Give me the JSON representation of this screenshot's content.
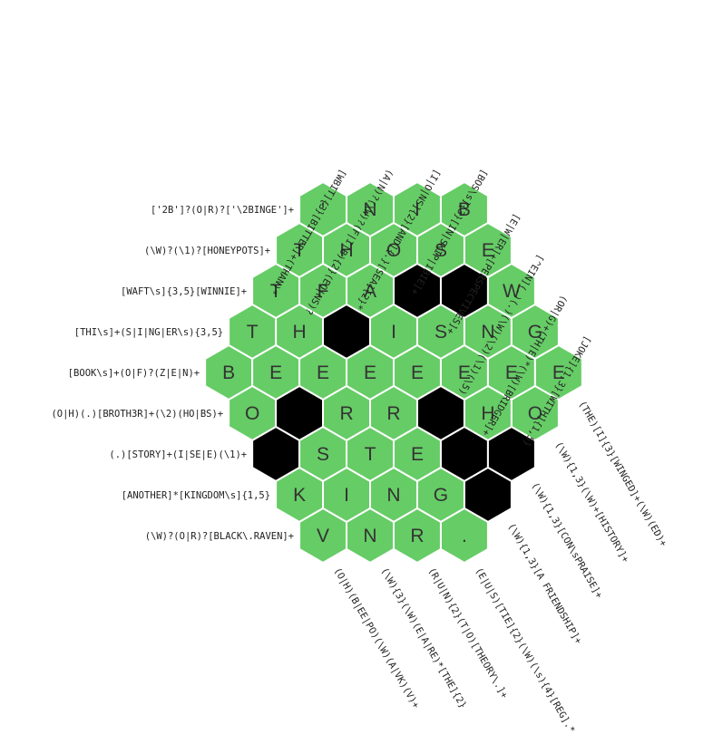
{
  "colors": {
    "cell": "#66cc66",
    "blocked": "#000000",
    "stroke": "#ffffff",
    "letter": "#333333"
  },
  "grid": {
    "rows": [
      [
        "'",
        "N",
        "I",
        "B"
      ],
      [
        "T",
        "H",
        "O",
        "S",
        "E"
      ],
      [
        "T",
        "F",
        "A",
        "#",
        "#",
        "W"
      ],
      [
        "T",
        "H",
        "#",
        "I",
        "S",
        "N",
        "G"
      ],
      [
        "B",
        "E",
        "E",
        "E",
        "E",
        "E",
        "E",
        "E"
      ],
      [
        "O",
        "#",
        "R",
        "R",
        "#",
        "H",
        "O"
      ],
      [
        "#",
        "S",
        "T",
        "E",
        "#",
        "#"
      ],
      [
        "K",
        "I",
        "N",
        "G",
        "#"
      ],
      [
        "V",
        "N",
        "R",
        "."
      ]
    ]
  },
  "clues": {
    "left": [
      "['2B']?(O|R)?['\\2BINGE']+",
      "(\\W)?(\\1)?[HONEYPOTS]+",
      "[WAFT\\s]{3,5}[WINNIE]+",
      "[THI\\s]+(S|I|NG|ER\\s){3,5}",
      "[BOOK\\s]+(O|F)?(Z|E|N)+",
      "(O|H)(.)[BROTH3R]+(\\2)(HO|BS)+",
      "(.)[STORY]+(I|SE|E)(\\1)+",
      "[ANOTHER]*[KINGDOM\\s]{1,5}",
      "(\\W)?(O|R)?[BLACK\\.RAVEN]+"
    ],
    "top": [
      "[WBIT]{3}[BITTER]+(THAN)*",
      "(A|N)?(\\W)?(F|I|B){2}(EO|NS)?",
      "[I|O|NS]{2}[AND]{.}[SEA]{2}*",
      "[BOS\\s]{3}[IN|SKIP|IBIE]+",
      "[E|W|ER]+[PERSPECTIVES]+",
      "[^EIN](.)(.)(\\W)(\\2)(\\1)(\\5)",
      "(OR|G)+(TH|E)*(\\W)[BRIDGER]+",
      "[JOKE]{1,3}[WITH]{1,5}"
    ],
    "bottom": [
      "(O|H)(B|EE|PO)(\\W)(A|VK)(V)+",
      "(\\W){3}(\\W)(E|A|RE)*[THE]{2}",
      "(R|U|N){2}(T|O)[THEORY\\.]+",
      "(E|U|S)[TIE]{2}(\\W)(\\s){4}[REG].*",
      "(\\W){1,3}[A FRIENDSHIP]+",
      "(\\W){1,3}[CON\\sPRAISE]+",
      "(\\W){1,3}(\\W)+[HISTORY]+",
      "(THE)[I]{3}[WINGED]+(\\W)(ED)+"
    ]
  }
}
